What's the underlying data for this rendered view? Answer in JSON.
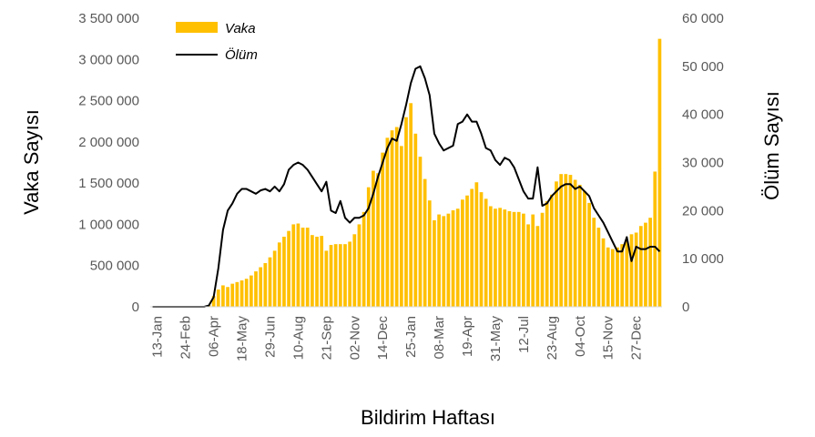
{
  "chart_data": {
    "type": "bar",
    "title": "",
    "xlabel": "Bildirim Haftası",
    "ylabel": "Vaka Sayısı",
    "y2label": "Ölüm Sayısı",
    "ylim": [
      0,
      3500000
    ],
    "y2lim": [
      0,
      60000
    ],
    "yticks": [
      "0",
      "500 000",
      "1 000 000",
      "1 500 000",
      "2 000 000",
      "2 500 000",
      "3 000 000",
      "3 500 000"
    ],
    "y2ticks": [
      "0",
      "10 000",
      "20 000",
      "30 000",
      "40 000",
      "50 000",
      "60 000"
    ],
    "xticks": [
      "13-Jan",
      "24-Feb",
      "06-Apr",
      "18-May",
      "29-Jun",
      "10-Aug",
      "21-Sep",
      "02-Nov",
      "14-Dec",
      "25-Jan",
      "08-Mar",
      "19-Apr",
      "31-May",
      "12-Jul",
      "23-Aug",
      "04-Oct",
      "15-Nov",
      "27-Dec"
    ],
    "grid": false,
    "legend": "top-left",
    "series": [
      {
        "name": "Vaka",
        "type": "bar",
        "axis": "left",
        "color": "#FFC000",
        "values": [
          0,
          0,
          0,
          0,
          0,
          0,
          0,
          0,
          0,
          0,
          0,
          0,
          20000,
          130000,
          210000,
          260000,
          240000,
          280000,
          300000,
          320000,
          340000,
          380000,
          430000,
          480000,
          530000,
          600000,
          680000,
          780000,
          850000,
          920000,
          1000000,
          1010000,
          960000,
          960000,
          870000,
          850000,
          860000,
          680000,
          750000,
          760000,
          760000,
          760000,
          790000,
          880000,
          1000000,
          1150000,
          1450000,
          1650000,
          1620000,
          1870000,
          2050000,
          2140000,
          2180000,
          1950000,
          2300000,
          2470000,
          2100000,
          1820000,
          1550000,
          1290000,
          1050000,
          1120000,
          1100000,
          1130000,
          1170000,
          1190000,
          1300000,
          1350000,
          1430000,
          1510000,
          1390000,
          1310000,
          1220000,
          1190000,
          1200000,
          1180000,
          1160000,
          1150000,
          1150000,
          1130000,
          1000000,
          1120000,
          980000,
          1140000,
          1280000,
          1360000,
          1520000,
          1610000,
          1610000,
          1600000,
          1540000,
          1480000,
          1400000,
          1260000,
          1080000,
          960000,
          830000,
          720000,
          700000,
          720000,
          760000,
          800000,
          880000,
          900000,
          980000,
          1020000,
          1080000,
          1640000,
          3250000
        ]
      },
      {
        "name": "Ölüm",
        "type": "line",
        "axis": "right",
        "color": "#000000",
        "values": [
          0,
          0,
          0,
          0,
          0,
          0,
          0,
          0,
          0,
          0,
          0,
          0,
          300,
          2000,
          8000,
          16000,
          20000,
          21500,
          23500,
          24500,
          24500,
          24000,
          23500,
          24200,
          24500,
          24000,
          25000,
          24000,
          25500,
          28500,
          29500,
          30000,
          29500,
          28500,
          27000,
          25500,
          24000,
          26000,
          20000,
          19500,
          22000,
          18500,
          17500,
          18500,
          18500,
          19000,
          20500,
          23500,
          27000,
          30000,
          33000,
          35000,
          34500,
          38000,
          42000,
          46500,
          49500,
          50000,
          47500,
          44000,
          36000,
          34000,
          32500,
          33000,
          33500,
          38000,
          38500,
          40000,
          38500,
          38500,
          36000,
          33000,
          32500,
          30500,
          29500,
          31000,
          30500,
          29000,
          26500,
          24000,
          22500,
          22500,
          29000,
          21000,
          21500,
          23000,
          24000,
          25000,
          25500,
          25500,
          24500,
          25000,
          24000,
          23000,
          20500,
          19000,
          17500,
          15500,
          13500,
          11500,
          11500,
          14500,
          9500,
          12500,
          12000,
          12000,
          12500,
          12500,
          11500
        ]
      }
    ]
  }
}
